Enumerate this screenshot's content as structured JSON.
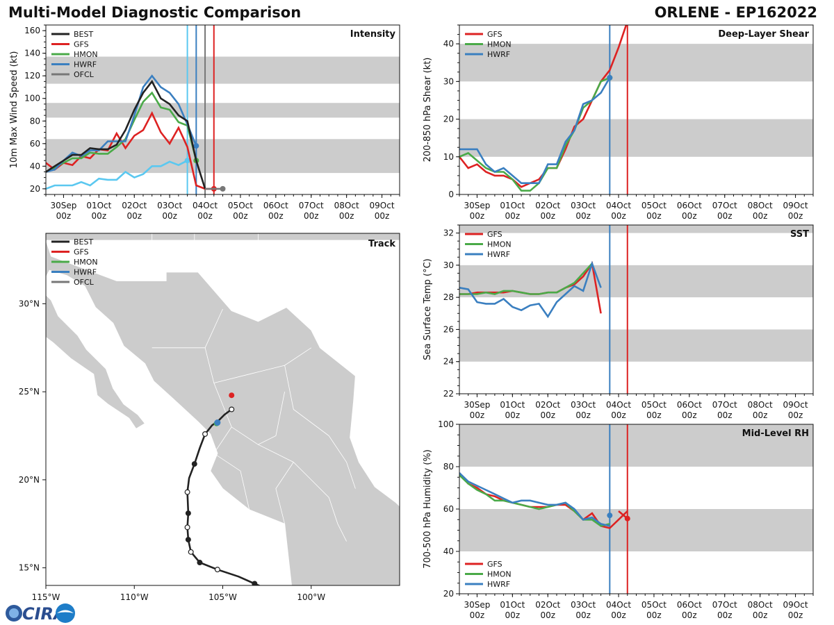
{
  "header": {
    "title": "Multi-Model Diagnostic Comparison",
    "storm": "ORLENE - EP162022"
  },
  "colors": {
    "BEST": "#222222",
    "GFS": "#dd2222",
    "HMON": "#4aaa48",
    "HWRF": "#3a7fc0",
    "OFCL": "#777777",
    "OBS": "#5bc8f0",
    "band": "#cccccc"
  },
  "time_axis": {
    "ticks": [
      {
        "t": 0,
        "date": "30Sep",
        "hour": "00z"
      },
      {
        "t": 1,
        "date": "01Oct",
        "hour": "00z"
      },
      {
        "t": 2,
        "date": "02Oct",
        "hour": "00z"
      },
      {
        "t": 3,
        "date": "03Oct",
        "hour": "00z"
      },
      {
        "t": 4,
        "date": "04Oct",
        "hour": "00z"
      },
      {
        "t": 5,
        "date": "05Oct",
        "hour": "00z"
      },
      {
        "t": 6,
        "date": "06Oct",
        "hour": "00z"
      },
      {
        "t": 7,
        "date": "07Oct",
        "hour": "00z"
      },
      {
        "t": 8,
        "date": "08Oct",
        "hour": "00z"
      },
      {
        "t": 9,
        "date": "09Oct",
        "hour": "00z"
      }
    ],
    "xlim": [
      -0.5,
      9.5
    ]
  },
  "logo": {
    "text": "CIRA"
  },
  "chart_data": [
    {
      "id": "intensity",
      "type": "line",
      "title": "Intensity",
      "ylabel": "10m Max Wind Speed (kt)",
      "ylim": [
        15,
        165
      ],
      "yticks": [
        20,
        40,
        60,
        80,
        100,
        120,
        140,
        160
      ],
      "bands": [
        [
          34,
          64
        ],
        [
          83,
          96
        ],
        [
          113,
          137
        ]
      ],
      "legend": [
        "BEST",
        "GFS",
        "HMON",
        "HWRF",
        "OFCL"
      ],
      "vlines": [
        {
          "x": 3.5,
          "color": "OBS"
        },
        {
          "x": 3.75,
          "color": "HWRF"
        },
        {
          "x": 4.0,
          "color": "OFCL"
        },
        {
          "x": 4.25,
          "color": "GFS"
        }
      ],
      "series": [
        {
          "name": "OBS",
          "x": [
            -0.5,
            -0.25,
            0,
            0.25,
            0.5,
            0.75,
            1,
            1.25,
            1.5,
            1.75,
            2,
            2.25,
            2.5,
            2.75,
            3,
            3.25,
            3.5
          ],
          "y": [
            20,
            23,
            23,
            23,
            26,
            23,
            29,
            28,
            28,
            35,
            30,
            33,
            40,
            40,
            44,
            41,
            45
          ],
          "end_marker": true
        },
        {
          "name": "GFS",
          "x": [
            -0.5,
            -0.25,
            0,
            0.25,
            0.5,
            0.75,
            1,
            1.25,
            1.5,
            1.75,
            2,
            2.25,
            2.5,
            2.75,
            3,
            3.25,
            3.5,
            3.75,
            4,
            4.25
          ],
          "y": [
            43,
            37,
            43,
            41,
            49,
            47,
            55,
            54,
            69,
            56,
            67,
            72,
            87,
            70,
            60,
            74,
            57,
            23,
            20,
            20
          ],
          "end_marker": true
        },
        {
          "name": "HMON",
          "x": [
            -0.5,
            -0.25,
            0,
            0.25,
            0.5,
            0.75,
            1,
            1.25,
            1.5,
            1.75,
            2,
            2.25,
            2.5,
            2.75,
            3,
            3.25,
            3.5,
            3.75
          ],
          "y": [
            35,
            39,
            43,
            47,
            47,
            52,
            51,
            51,
            57,
            64,
            81,
            97,
            105,
            92,
            90,
            79,
            76,
            45
          ],
          "end_marker": true
        },
        {
          "name": "HWRF",
          "x": [
            -0.5,
            -0.25,
            0,
            0.25,
            0.5,
            0.75,
            1,
            1.25,
            1.5,
            1.75,
            2,
            2.25,
            2.5,
            2.75,
            3,
            3.25,
            3.5,
            3.75
          ],
          "y": [
            35,
            37,
            45,
            52,
            49,
            54,
            54,
            62,
            62,
            62,
            85,
            110,
            120,
            110,
            105,
            95,
            77,
            58
          ],
          "end_marker": true
        },
        {
          "name": "BEST",
          "x": [
            -0.5,
            -0.25,
            0,
            0.25,
            0.5,
            0.75,
            1,
            1.25,
            1.5,
            1.75,
            2,
            2.25,
            2.5,
            2.75,
            3,
            3.25,
            3.5,
            3.75,
            4
          ],
          "y": [
            35,
            40,
            45,
            50,
            50,
            56,
            55,
            55,
            59,
            72,
            90,
            105,
            115,
            100,
            95,
            85,
            80,
            45,
            20
          ],
          "end_marker": false
        },
        {
          "name": "OFCL",
          "x": [
            4,
            4.25,
            4.5
          ],
          "y": [
            20,
            20,
            20
          ],
          "end_marker": true
        }
      ]
    },
    {
      "id": "shear",
      "type": "line",
      "title": "Deep-Layer Shear",
      "ylabel": "200-850 hPa Shear (kt)",
      "ylim": [
        0,
        45
      ],
      "yticks": [
        0,
        10,
        20,
        30,
        40
      ],
      "bands": [
        [
          10,
          20
        ],
        [
          30,
          40
        ]
      ],
      "legend": [
        "GFS",
        "HMON",
        "HWRF"
      ],
      "vlines": [
        {
          "x": 3.75,
          "color": "HWRF"
        },
        {
          "x": 4.25,
          "color": "GFS"
        }
      ],
      "series": [
        {
          "name": "GFS",
          "x": [
            -0.5,
            -0.25,
            0,
            0.25,
            0.5,
            0.75,
            1,
            1.25,
            1.5,
            1.75,
            2,
            2.25,
            2.5,
            2.75,
            3,
            3.25,
            3.5,
            3.75,
            4,
            4.25
          ],
          "y": [
            10,
            7,
            8,
            6,
            5,
            5,
            4,
            2,
            3,
            4,
            7,
            7,
            12,
            18,
            20,
            25,
            30,
            33,
            39,
            46
          ],
          "end_marker": false
        },
        {
          "name": "HMON",
          "x": [
            -0.5,
            -0.25,
            0,
            0.25,
            0.5,
            0.75,
            1,
            1.25,
            1.5,
            1.75,
            2,
            2.25,
            2.5,
            2.75,
            3,
            3.25,
            3.5,
            3.75
          ],
          "y": [
            10,
            11,
            9,
            7,
            6,
            6,
            4,
            1,
            1,
            3,
            7,
            7,
            13,
            17,
            23,
            25,
            30,
            31
          ],
          "end_marker": true
        },
        {
          "name": "HWRF",
          "x": [
            -0.5,
            -0.25,
            0,
            0.25,
            0.5,
            0.75,
            1,
            1.25,
            1.5,
            1.75,
            2,
            2.25,
            2.5,
            2.75,
            3,
            3.25,
            3.5,
            3.75
          ],
          "y": [
            12,
            12,
            12,
            8,
            6,
            7,
            5,
            3,
            3,
            3,
            8,
            8,
            14,
            17,
            24,
            25,
            27,
            31
          ],
          "end_marker": true
        }
      ]
    },
    {
      "id": "sst",
      "type": "line",
      "title": "SST",
      "ylabel": "Sea Surface Temp (°C)",
      "ylim": [
        22,
        32.5
      ],
      "yticks": [
        22,
        24,
        26,
        28,
        30,
        32
      ],
      "bands": [
        [
          24,
          26
        ],
        [
          28,
          30
        ],
        [
          32,
          32.5
        ]
      ],
      "legend": [
        "GFS",
        "HMON",
        "HWRF"
      ],
      "vlines": [
        {
          "x": 3.75,
          "color": "HWRF"
        },
        {
          "x": 4.25,
          "color": "GFS"
        }
      ],
      "series": [
        {
          "name": "GFS",
          "x": [
            -0.5,
            -0.25,
            0,
            0.25,
            0.5,
            0.75,
            1,
            1.25,
            1.5,
            1.75,
            2,
            2.25,
            2.5,
            2.75,
            3,
            3.25,
            3.5
          ],
          "y": [
            28.2,
            28.2,
            28.3,
            28.3,
            28.3,
            28.3,
            28.4,
            28.3,
            28.2,
            28.2,
            28.3,
            28.3,
            28.6,
            28.8,
            29.3,
            30.1,
            27.0
          ],
          "end_marker": false
        },
        {
          "name": "HMON",
          "x": [
            -0.5,
            -0.25,
            0,
            0.25,
            0.5,
            0.75,
            1,
            1.25,
            1.5,
            1.75,
            2,
            2.25,
            2.5,
            2.75,
            3,
            3.25
          ],
          "y": [
            28.2,
            28.2,
            28.2,
            28.3,
            28.2,
            28.4,
            28.4,
            28.3,
            28.2,
            28.2,
            28.3,
            28.3,
            28.6,
            28.9,
            29.5,
            30.1
          ],
          "end_marker": false
        },
        {
          "name": "HWRF",
          "x": [
            -0.5,
            -0.25,
            0,
            0.25,
            0.5,
            0.75,
            1,
            1.25,
            1.5,
            1.75,
            2,
            2.25,
            2.5,
            2.75,
            3,
            3.25,
            3.5
          ],
          "y": [
            28.6,
            28.5,
            27.7,
            27.6,
            27.6,
            27.9,
            27.4,
            27.2,
            27.5,
            27.6,
            26.8,
            27.7,
            28.2,
            28.7,
            28.4,
            30.1,
            28.6
          ],
          "end_marker": false
        }
      ]
    },
    {
      "id": "rh",
      "type": "line",
      "title": "Mid-Level RH",
      "ylabel": "700-500 hPa Humidity (%)",
      "ylim": [
        20,
        100
      ],
      "yticks": [
        20,
        40,
        60,
        80,
        100
      ],
      "bands": [
        [
          40,
          60
        ],
        [
          80,
          100
        ]
      ],
      "legend": [
        "GFS",
        "HMON",
        "HWRF"
      ],
      "vlines": [
        {
          "x": 3.75,
          "color": "HWRF"
        },
        {
          "x": 4.25,
          "color": "GFS"
        }
      ],
      "series": [
        {
          "name": "GFS",
          "x": [
            -0.5,
            -0.25,
            0,
            0.25,
            0.5,
            0.75,
            1,
            1.25,
            1.5,
            1.75,
            2,
            2.25,
            2.5,
            2.75,
            3,
            3.25,
            3.5,
            3.75,
            4,
            4.25
          ],
          "y": [
            77,
            72,
            70,
            67,
            66,
            64,
            63,
            62,
            61,
            61,
            61,
            62,
            62,
            59,
            55,
            58,
            52,
            51,
            55,
            59
          ],
          "end_marker": false
        },
        {
          "name": "HMON",
          "x": [
            -0.5,
            -0.25,
            0,
            0.25,
            0.5,
            0.75,
            1,
            1.25,
            1.5,
            1.75,
            2,
            2.25,
            2.5,
            2.75,
            3,
            3.25,
            3.5,
            3.75
          ],
          "y": [
            76,
            72,
            69,
            67,
            64,
            64,
            63,
            62,
            61,
            60,
            61,
            62,
            63,
            59,
            55,
            55,
            52,
            53
          ],
          "end_marker": false
        },
        {
          "name": "HWRF",
          "x": [
            -0.5,
            -0.25,
            0,
            0.25,
            0.5,
            0.75,
            1,
            1.25,
            1.5,
            1.75,
            2,
            2.25,
            2.5,
            2.75,
            3,
            3.25,
            3.5,
            3.75
          ],
          "y": [
            77,
            73,
            71,
            69,
            67,
            65,
            63,
            64,
            64,
            63,
            62,
            62,
            63,
            60,
            55,
            56,
            53,
            52
          ],
          "end_marker": false
        },
        {
          "name": "GFS",
          "x": [
            4,
            4.25
          ],
          "y": [
            59,
            55.5
          ],
          "end_marker": true,
          "no_line_first": true
        },
        {
          "name": "HWRF",
          "x": [
            3.75
          ],
          "y": [
            57
          ],
          "end_marker": true
        }
      ]
    },
    {
      "id": "track",
      "type": "scatter",
      "title": "Track",
      "xlim": [
        -115,
        -95
      ],
      "ylim": [
        14,
        34
      ],
      "xticks": [
        {
          "v": -115,
          "label": "115°W"
        },
        {
          "v": -110,
          "label": "110°W"
        },
        {
          "v": -105,
          "label": "105°W"
        },
        {
          "v": -100,
          "label": "100°W"
        }
      ],
      "yticks": [
        {
          "v": 15,
          "label": "15°N"
        },
        {
          "v": 20,
          "label": "20°N"
        },
        {
          "v": 25,
          "label": "25°N"
        },
        {
          "v": 30,
          "label": "30°N"
        }
      ],
      "legend": [
        "BEST",
        "GFS",
        "HMON",
        "HWRF",
        "OFCL"
      ],
      "best": [
        [
          -102.5,
          13.8
        ],
        [
          -103.2,
          14.1
        ],
        [
          -104.1,
          14.5
        ],
        [
          -105.3,
          14.9
        ],
        [
          -106.3,
          15.3
        ],
        [
          -106.8,
          15.9
        ],
        [
          -106.95,
          16.6
        ],
        [
          -107.0,
          17.3
        ],
        [
          -106.95,
          18.1
        ],
        [
          -107.0,
          19.3
        ],
        [
          -106.9,
          20.1
        ],
        [
          -106.6,
          20.9
        ],
        [
          -106.3,
          21.8
        ],
        [
          -106.0,
          22.6
        ],
        [
          -105.6,
          23.1
        ],
        [
          -105.3,
          23.3
        ],
        [
          -104.9,
          23.7
        ],
        [
          -104.5,
          24.0
        ]
      ],
      "best_points": [
        [
          -103.2,
          14.1,
          "f"
        ],
        [
          -105.3,
          14.9,
          "o"
        ],
        [
          -106.3,
          15.3,
          "f"
        ],
        [
          -106.8,
          15.9,
          "o"
        ],
        [
          -106.95,
          16.6,
          "f"
        ],
        [
          -107.0,
          17.3,
          "o"
        ],
        [
          -106.95,
          18.1,
          "f"
        ],
        [
          -107.0,
          19.3,
          "o"
        ],
        [
          -106.6,
          20.9,
          "f"
        ],
        [
          -106.0,
          22.6,
          "o"
        ],
        [
          -104.5,
          24.0,
          "o"
        ]
      ],
      "gfs_point": [
        -104.5,
        24.8
      ],
      "hmon_point": [
        -105.35,
        23.2
      ],
      "hwrf_point": [
        -105.3,
        23.25
      ]
    }
  ]
}
